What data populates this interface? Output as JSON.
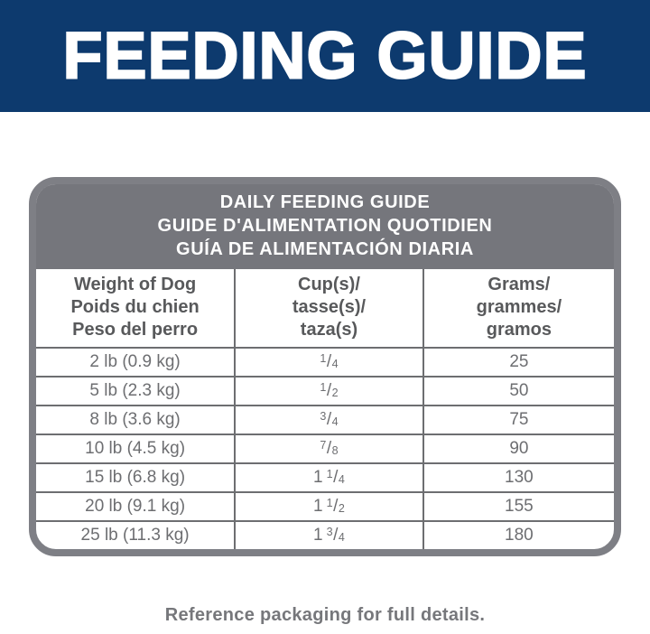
{
  "banner": {
    "title": "FEEDING GUIDE"
  },
  "colors": {
    "banner_navy": "#0d3a6e",
    "card_border_gray": "#7e7f85",
    "card_header_gray": "#75767c",
    "header_text_dark": "#58595b",
    "body_text_gray": "#6d6e71",
    "footer_text_gray": "#76777b",
    "white": "#ffffff"
  },
  "table": {
    "header_lines": [
      "DAILY FEEDING GUIDE",
      "GUIDE D'ALIMENTATION QUOTIDIEN",
      "GUÍA DE ALIMENTACIÓN DIARIA"
    ],
    "columns": [
      {
        "lines": [
          "Weight of Dog",
          "Poids du chien",
          "Peso del perro"
        ]
      },
      {
        "lines": [
          "Cup(s)/",
          "tasse(s)/",
          "taza(s)"
        ]
      },
      {
        "lines": [
          "Grams/",
          "grammes/",
          "gramos"
        ]
      }
    ],
    "rows": [
      {
        "weight": "2 lb (0.9 kg)",
        "cup": {
          "whole": "",
          "num": "1",
          "den": "4"
        },
        "grams": "25"
      },
      {
        "weight": "5 lb (2.3 kg)",
        "cup": {
          "whole": "",
          "num": "1",
          "den": "2"
        },
        "grams": "50"
      },
      {
        "weight": "8 lb (3.6 kg)",
        "cup": {
          "whole": "",
          "num": "3",
          "den": "4"
        },
        "grams": "75"
      },
      {
        "weight": "10 lb (4.5 kg)",
        "cup": {
          "whole": "",
          "num": "7",
          "den": "8"
        },
        "grams": "90"
      },
      {
        "weight": "15 lb (6.8 kg)",
        "cup": {
          "whole": "1",
          "num": "1",
          "den": "4"
        },
        "grams": "130"
      },
      {
        "weight": "20 lb (9.1 kg)",
        "cup": {
          "whole": "1",
          "num": "1",
          "den": "2"
        },
        "grams": "155"
      },
      {
        "weight": "25 lb (11.3 kg)",
        "cup": {
          "whole": "1",
          "num": "3",
          "den": "4"
        },
        "grams": "180"
      }
    ]
  },
  "footer": {
    "note": "Reference packaging for full details."
  }
}
